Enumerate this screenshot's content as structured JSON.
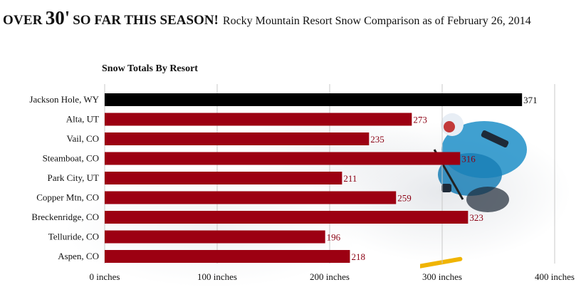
{
  "headline": {
    "over": "OVER",
    "big": "30'",
    "rest": "SO FAR THIS SEASON!",
    "subtitle": "Rocky Mountain Resort Snow Comparison as of February 26, 2014"
  },
  "colors": {
    "highlight_bar": "#000000",
    "bar": "#9c0012",
    "value_label": "#8b0012",
    "grid": "#c8c8c8",
    "text": "#111111"
  },
  "chart_data": {
    "type": "bar",
    "orientation": "horizontal",
    "title": "Snow Totals By Resort",
    "categories": [
      "Jackson Hole, WY",
      "Alta, UT",
      "Vail, CO",
      "Steamboat, CO",
      "Park City, UT",
      "Copper Mtn, CO",
      "Breckenridge, CO",
      "Telluride, CO",
      "Aspen, CO"
    ],
    "values": [
      371,
      273,
      235,
      316,
      211,
      259,
      323,
      196,
      218
    ],
    "highlight_index": 0,
    "xlim": [
      0,
      400
    ],
    "xticks": [
      0,
      100,
      200,
      300,
      400
    ],
    "xtick_labels": [
      "0 inches",
      "100 inches",
      "200 inches",
      "300 inches",
      "400 inches"
    ],
    "grid": true
  }
}
